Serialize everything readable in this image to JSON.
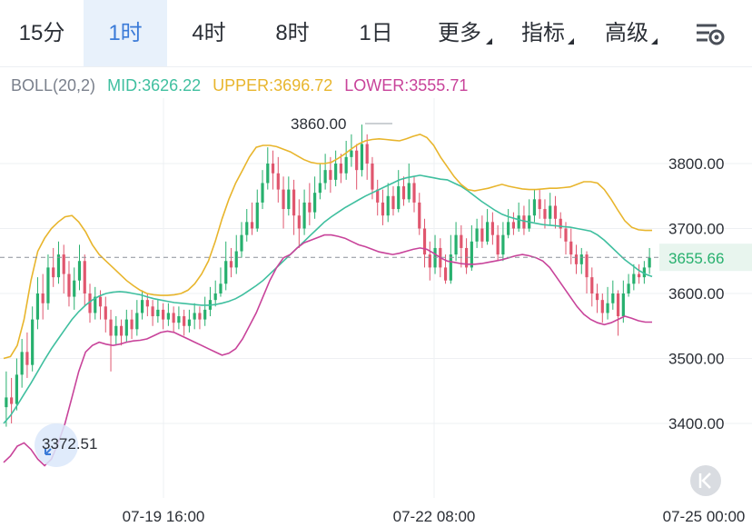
{
  "toolbar": {
    "tabs": [
      {
        "label": "15分",
        "active": false
      },
      {
        "label": "1时",
        "active": true
      },
      {
        "label": "4时",
        "active": false
      },
      {
        "label": "8时",
        "active": false
      },
      {
        "label": "1日",
        "active": false
      },
      {
        "label": "更多",
        "active": false,
        "dropdown": true
      },
      {
        "label": "指标",
        "active": false,
        "dropdown": true
      },
      {
        "label": "高级",
        "active": false,
        "dropdown": true
      }
    ],
    "settings_icon": "chart-settings-icon"
  },
  "indicator": {
    "name": "BOLL(20,2)",
    "mid": "MID:3626.22",
    "upper": "UPPER:3696.72",
    "lower": "LOWER:3555.71"
  },
  "colors": {
    "mid": "#3fbf9f",
    "upper": "#e8b52c",
    "lower": "#c8439a",
    "up_candle": "#27b06e",
    "down_candle": "#e0566e",
    "label": "#7a808c",
    "accent": "#3b7bd8"
  },
  "chart_data": {
    "type": "candlestick",
    "indicator": "BOLL(20,2)",
    "yaxis_ticks": [
      "3800.00",
      "3700.00",
      "3600.00",
      "3500.00",
      "3400.00"
    ],
    "ylim": [
      3330,
      3880
    ],
    "xaxis_ticks": [
      "07-19 16:00",
      "07-22 08:00",
      "07-25 00:00"
    ],
    "current_price": 3655.66,
    "current_price_label": "3655.66",
    "max_label": "3860.00",
    "min_label": "3372.51",
    "grid": true,
    "candles": [
      {
        "o": 3425,
        "c": 3440,
        "h": 3480,
        "l": 3395
      },
      {
        "o": 3440,
        "c": 3430,
        "h": 3470,
        "l": 3400
      },
      {
        "o": 3430,
        "c": 3475,
        "h": 3500,
        "l": 3420
      },
      {
        "o": 3475,
        "c": 3510,
        "h": 3530,
        "l": 3455
      },
      {
        "o": 3510,
        "c": 3490,
        "h": 3540,
        "l": 3470
      },
      {
        "o": 3490,
        "c": 3560,
        "h": 3580,
        "l": 3480
      },
      {
        "o": 3560,
        "c": 3600,
        "h": 3625,
        "l": 3545
      },
      {
        "o": 3600,
        "c": 3585,
        "h": 3630,
        "l": 3560
      },
      {
        "o": 3585,
        "c": 3640,
        "h": 3660,
        "l": 3575
      },
      {
        "o": 3640,
        "c": 3625,
        "h": 3670,
        "l": 3610
      },
      {
        "o": 3625,
        "c": 3660,
        "h": 3680,
        "l": 3615
      },
      {
        "o": 3660,
        "c": 3630,
        "h": 3675,
        "l": 3600
      },
      {
        "o": 3630,
        "c": 3595,
        "h": 3650,
        "l": 3580
      },
      {
        "o": 3595,
        "c": 3620,
        "h": 3640,
        "l": 3575
      },
      {
        "o": 3620,
        "c": 3650,
        "h": 3675,
        "l": 3605
      },
      {
        "o": 3650,
        "c": 3600,
        "h": 3660,
        "l": 3580
      },
      {
        "o": 3600,
        "c": 3570,
        "h": 3615,
        "l": 3555
      },
      {
        "o": 3570,
        "c": 3595,
        "h": 3610,
        "l": 3560
      },
      {
        "o": 3595,
        "c": 3580,
        "h": 3605,
        "l": 3560
      },
      {
        "o": 3580,
        "c": 3560,
        "h": 3595,
        "l": 3540
      },
      {
        "o": 3560,
        "c": 3535,
        "h": 3575,
        "l": 3480
      },
      {
        "o": 3535,
        "c": 3550,
        "h": 3565,
        "l": 3520
      },
      {
        "o": 3550,
        "c": 3535,
        "h": 3560,
        "l": 3520
      },
      {
        "o": 3535,
        "c": 3560,
        "h": 3575,
        "l": 3525
      },
      {
        "o": 3560,
        "c": 3545,
        "h": 3575,
        "l": 3530
      },
      {
        "o": 3545,
        "c": 3570,
        "h": 3590,
        "l": 3535
      },
      {
        "o": 3570,
        "c": 3590,
        "h": 3605,
        "l": 3560
      },
      {
        "o": 3590,
        "c": 3580,
        "h": 3600,
        "l": 3565
      },
      {
        "o": 3580,
        "c": 3565,
        "h": 3590,
        "l": 3550
      },
      {
        "o": 3565,
        "c": 3575,
        "h": 3590,
        "l": 3555
      },
      {
        "o": 3575,
        "c": 3560,
        "h": 3585,
        "l": 3545
      },
      {
        "o": 3560,
        "c": 3570,
        "h": 3585,
        "l": 3550
      },
      {
        "o": 3570,
        "c": 3555,
        "h": 3580,
        "l": 3540
      },
      {
        "o": 3555,
        "c": 3565,
        "h": 3580,
        "l": 3545
      },
      {
        "o": 3565,
        "c": 3550,
        "h": 3575,
        "l": 3535
      },
      {
        "o": 3550,
        "c": 3560,
        "h": 3575,
        "l": 3540
      },
      {
        "o": 3560,
        "c": 3570,
        "h": 3585,
        "l": 3545
      },
      {
        "o": 3570,
        "c": 3560,
        "h": 3580,
        "l": 3545
      },
      {
        "o": 3560,
        "c": 3575,
        "h": 3595,
        "l": 3550
      },
      {
        "o": 3575,
        "c": 3590,
        "h": 3610,
        "l": 3565
      },
      {
        "o": 3590,
        "c": 3600,
        "h": 3620,
        "l": 3580
      },
      {
        "o": 3600,
        "c": 3615,
        "h": 3640,
        "l": 3595
      },
      {
        "o": 3615,
        "c": 3650,
        "h": 3680,
        "l": 3605
      },
      {
        "o": 3650,
        "c": 3640,
        "h": 3670,
        "l": 3625
      },
      {
        "o": 3640,
        "c": 3665,
        "h": 3690,
        "l": 3630
      },
      {
        "o": 3665,
        "c": 3690,
        "h": 3710,
        "l": 3655
      },
      {
        "o": 3690,
        "c": 3710,
        "h": 3730,
        "l": 3680
      },
      {
        "o": 3710,
        "c": 3700,
        "h": 3740,
        "l": 3690
      },
      {
        "o": 3700,
        "c": 3740,
        "h": 3760,
        "l": 3695
      },
      {
        "o": 3740,
        "c": 3770,
        "h": 3790,
        "l": 3730
      },
      {
        "o": 3770,
        "c": 3800,
        "h": 3825,
        "l": 3760
      },
      {
        "o": 3800,
        "c": 3785,
        "h": 3820,
        "l": 3760
      },
      {
        "o": 3785,
        "c": 3760,
        "h": 3810,
        "l": 3740
      },
      {
        "o": 3760,
        "c": 3730,
        "h": 3780,
        "l": 3700
      },
      {
        "o": 3730,
        "c": 3760,
        "h": 3780,
        "l": 3720
      },
      {
        "o": 3760,
        "c": 3720,
        "h": 3775,
        "l": 3690
      },
      {
        "o": 3720,
        "c": 3700,
        "h": 3745,
        "l": 3670
      },
      {
        "o": 3700,
        "c": 3740,
        "h": 3760,
        "l": 3690
      },
      {
        "o": 3740,
        "c": 3725,
        "h": 3770,
        "l": 3705
      },
      {
        "o": 3725,
        "c": 3755,
        "h": 3780,
        "l": 3715
      },
      {
        "o": 3755,
        "c": 3770,
        "h": 3800,
        "l": 3745
      },
      {
        "o": 3770,
        "c": 3790,
        "h": 3815,
        "l": 3760
      },
      {
        "o": 3790,
        "c": 3775,
        "h": 3810,
        "l": 3755
      },
      {
        "o": 3775,
        "c": 3800,
        "h": 3820,
        "l": 3765
      },
      {
        "o": 3800,
        "c": 3785,
        "h": 3815,
        "l": 3770
      },
      {
        "o": 3785,
        "c": 3810,
        "h": 3835,
        "l": 3775
      },
      {
        "o": 3810,
        "c": 3820,
        "h": 3845,
        "l": 3795
      },
      {
        "o": 3820,
        "c": 3790,
        "h": 3830,
        "l": 3760
      },
      {
        "o": 3790,
        "c": 3830,
        "h": 3860,
        "l": 3780
      },
      {
        "o": 3830,
        "c": 3800,
        "h": 3845,
        "l": 3775
      },
      {
        "o": 3800,
        "c": 3760,
        "h": 3810,
        "l": 3745
      },
      {
        "o": 3760,
        "c": 3740,
        "h": 3775,
        "l": 3720
      },
      {
        "o": 3740,
        "c": 3720,
        "h": 3760,
        "l": 3705
      },
      {
        "o": 3720,
        "c": 3750,
        "h": 3770,
        "l": 3710
      },
      {
        "o": 3750,
        "c": 3730,
        "h": 3765,
        "l": 3720
      },
      {
        "o": 3730,
        "c": 3765,
        "h": 3790,
        "l": 3725
      },
      {
        "o": 3765,
        "c": 3745,
        "h": 3780,
        "l": 3735
      },
      {
        "o": 3745,
        "c": 3770,
        "h": 3800,
        "l": 3740
      },
      {
        "o": 3770,
        "c": 3740,
        "h": 3780,
        "l": 3725
      },
      {
        "o": 3740,
        "c": 3700,
        "h": 3755,
        "l": 3690
      },
      {
        "o": 3700,
        "c": 3660,
        "h": 3715,
        "l": 3640
      },
      {
        "o": 3660,
        "c": 3640,
        "h": 3680,
        "l": 3620
      },
      {
        "o": 3640,
        "c": 3670,
        "h": 3690,
        "l": 3630
      },
      {
        "o": 3670,
        "c": 3640,
        "h": 3685,
        "l": 3625
      },
      {
        "o": 3640,
        "c": 3620,
        "h": 3660,
        "l": 3615
      },
      {
        "o": 3620,
        "c": 3660,
        "h": 3690,
        "l": 3615
      },
      {
        "o": 3660,
        "c": 3690,
        "h": 3710,
        "l": 3650
      },
      {
        "o": 3690,
        "c": 3670,
        "h": 3705,
        "l": 3640
      },
      {
        "o": 3670,
        "c": 3640,
        "h": 3685,
        "l": 3630
      },
      {
        "o": 3640,
        "c": 3680,
        "h": 3705,
        "l": 3635
      },
      {
        "o": 3680,
        "c": 3700,
        "h": 3715,
        "l": 3670
      },
      {
        "o": 3700,
        "c": 3680,
        "h": 3720,
        "l": 3670
      },
      {
        "o": 3680,
        "c": 3710,
        "h": 3730,
        "l": 3675
      },
      {
        "o": 3710,
        "c": 3690,
        "h": 3725,
        "l": 3675
      },
      {
        "o": 3690,
        "c": 3660,
        "h": 3705,
        "l": 3650
      },
      {
        "o": 3660,
        "c": 3690,
        "h": 3710,
        "l": 3650
      },
      {
        "o": 3690,
        "c": 3710,
        "h": 3730,
        "l": 3685
      },
      {
        "o": 3710,
        "c": 3700,
        "h": 3725,
        "l": 3690
      },
      {
        "o": 3700,
        "c": 3720,
        "h": 3740,
        "l": 3695
      },
      {
        "o": 3720,
        "c": 3700,
        "h": 3735,
        "l": 3690
      },
      {
        "o": 3700,
        "c": 3720,
        "h": 3745,
        "l": 3695
      },
      {
        "o": 3720,
        "c": 3745,
        "h": 3760,
        "l": 3710
      },
      {
        "o": 3745,
        "c": 3730,
        "h": 3760,
        "l": 3715
      },
      {
        "o": 3730,
        "c": 3715,
        "h": 3745,
        "l": 3700
      },
      {
        "o": 3715,
        "c": 3735,
        "h": 3755,
        "l": 3705
      },
      {
        "o": 3735,
        "c": 3715,
        "h": 3750,
        "l": 3700
      },
      {
        "o": 3715,
        "c": 3700,
        "h": 3725,
        "l": 3685
      },
      {
        "o": 3700,
        "c": 3680,
        "h": 3710,
        "l": 3660
      },
      {
        "o": 3680,
        "c": 3660,
        "h": 3700,
        "l": 3645
      },
      {
        "o": 3660,
        "c": 3645,
        "h": 3675,
        "l": 3630
      },
      {
        "o": 3645,
        "c": 3660,
        "h": 3670,
        "l": 3630
      },
      {
        "o": 3660,
        "c": 3625,
        "h": 3665,
        "l": 3600
      },
      {
        "o": 3625,
        "c": 3600,
        "h": 3640,
        "l": 3580
      },
      {
        "o": 3600,
        "c": 3590,
        "h": 3615,
        "l": 3570
      },
      {
        "o": 3590,
        "c": 3570,
        "h": 3600,
        "l": 3555
      },
      {
        "o": 3570,
        "c": 3585,
        "h": 3610,
        "l": 3560
      },
      {
        "o": 3585,
        "c": 3600,
        "h": 3620,
        "l": 3575
      },
      {
        "o": 3600,
        "c": 3565,
        "h": 3605,
        "l": 3535
      },
      {
        "o": 3565,
        "c": 3600,
        "h": 3620,
        "l": 3555
      },
      {
        "o": 3600,
        "c": 3615,
        "h": 3630,
        "l": 3595
      },
      {
        "o": 3615,
        "c": 3630,
        "h": 3645,
        "l": 3605
      },
      {
        "o": 3630,
        "c": 3625,
        "h": 3645,
        "l": 3615
      },
      {
        "o": 3625,
        "c": 3640,
        "h": 3650,
        "l": 3615
      },
      {
        "o": 3640,
        "c": 3655,
        "h": 3670,
        "l": 3630
      }
    ],
    "series": [
      {
        "name": "MID",
        "values": [
          3400,
          3412,
          3428,
          3445,
          3462,
          3480,
          3498,
          3515,
          3530,
          3545,
          3560,
          3572,
          3582,
          3590,
          3596,
          3600,
          3602,
          3603,
          3602,
          3600,
          3598,
          3595,
          3592,
          3590,
          3588,
          3586,
          3585,
          3584,
          3583,
          3582,
          3582,
          3583,
          3585,
          3588,
          3592,
          3598,
          3605,
          3612,
          3620,
          3630,
          3640,
          3650,
          3660,
          3670,
          3680,
          3690,
          3700,
          3710,
          3718,
          3725,
          3732,
          3738,
          3744,
          3750,
          3755,
          3760,
          3765,
          3770,
          3775,
          3778,
          3780,
          3782,
          3780,
          3778,
          3776,
          3775,
          3770,
          3765,
          3758,
          3750,
          3742,
          3735,
          3728,
          3722,
          3718,
          3715,
          3712,
          3710,
          3708,
          3706,
          3705,
          3704,
          3703,
          3702,
          3700,
          3698,
          3696,
          3690,
          3682,
          3672,
          3662,
          3652,
          3644,
          3636,
          3630,
          3626
        ]
      },
      {
        "name": "UPPER",
        "values": [
          3500,
          3503,
          3520,
          3560,
          3620,
          3665,
          3685,
          3700,
          3710,
          3718,
          3720,
          3710,
          3695,
          3675,
          3660,
          3650,
          3640,
          3630,
          3620,
          3612,
          3605,
          3600,
          3598,
          3597,
          3597,
          3598,
          3600,
          3605,
          3615,
          3630,
          3650,
          3680,
          3715,
          3745,
          3770,
          3790,
          3810,
          3825,
          3828,
          3828,
          3826,
          3822,
          3818,
          3812,
          3806,
          3802,
          3800,
          3800,
          3802,
          3808,
          3815,
          3823,
          3830,
          3835,
          3837,
          3838,
          3837,
          3836,
          3835,
          3838,
          3842,
          3845,
          3840,
          3828,
          3810,
          3795,
          3780,
          3768,
          3760,
          3758,
          3760,
          3762,
          3765,
          3768,
          3765,
          3763,
          3761,
          3760,
          3760,
          3761,
          3762,
          3762,
          3763,
          3764,
          3768,
          3772,
          3772,
          3770,
          3760,
          3745,
          3728,
          3712,
          3702,
          3698,
          3697,
          3697
        ]
      },
      {
        "name": "LOWER",
        "values": [
          3340,
          3350,
          3365,
          3370,
          3360,
          3345,
          3335,
          3345,
          3370,
          3400,
          3440,
          3480,
          3510,
          3520,
          3525,
          3522,
          3520,
          3522,
          3525,
          3527,
          3528,
          3530,
          3535,
          3540,
          3542,
          3540,
          3535,
          3530,
          3525,
          3520,
          3515,
          3510,
          3505,
          3508,
          3515,
          3530,
          3550,
          3570,
          3595,
          3620,
          3640,
          3655,
          3660,
          3670,
          3678,
          3682,
          3686,
          3690,
          3690,
          3688,
          3685,
          3680,
          3675,
          3672,
          3668,
          3664,
          3662,
          3660,
          3662,
          3665,
          3668,
          3670,
          3668,
          3662,
          3655,
          3650,
          3648,
          3646,
          3645,
          3645,
          3646,
          3648,
          3650,
          3652,
          3655,
          3658,
          3660,
          3658,
          3655,
          3650,
          3640,
          3625,
          3610,
          3595,
          3580,
          3568,
          3560,
          3555,
          3552,
          3555,
          3560,
          3565,
          3562,
          3558,
          3556,
          3556
        ]
      }
    ]
  }
}
